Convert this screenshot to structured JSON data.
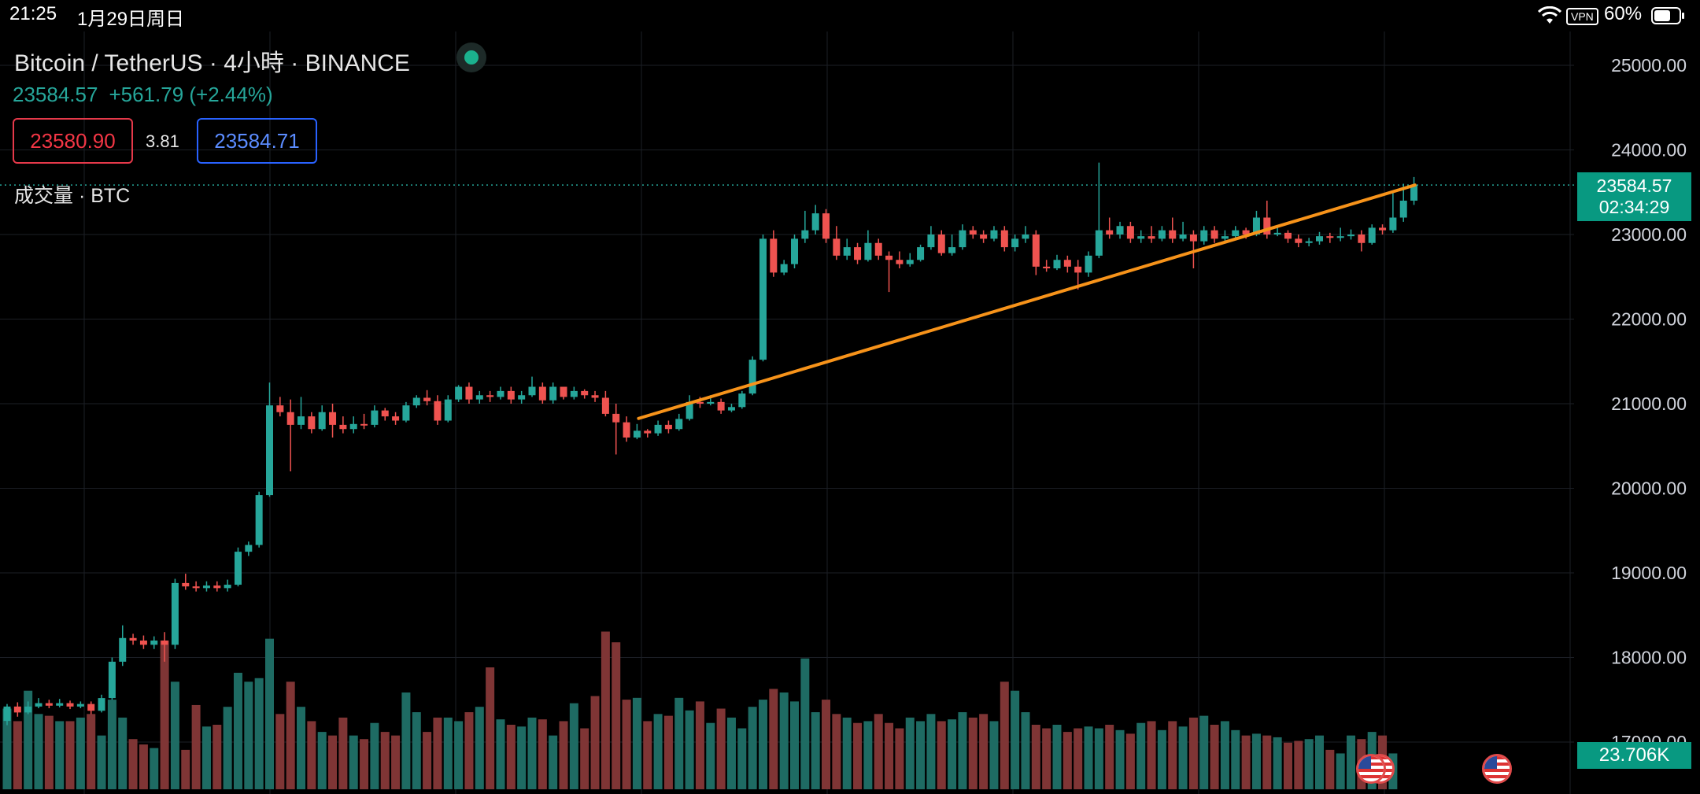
{
  "status_bar": {
    "time": "21:25",
    "date": "1月29日周日",
    "vpn": "VPN",
    "battery": "60%",
    "icons": [
      "wifi-icon",
      "vpn-icon",
      "battery-icon"
    ]
  },
  "header": {
    "symbol": "Bitcoin / TetherUS · 4小時 · BINANCE",
    "last_price": "23584.57",
    "change": "+561.79 (+2.44%)",
    "bid": "23580.90",
    "spread": "3.81",
    "ask": "23584.71",
    "volume_label": "成交量 · BTC"
  },
  "colors": {
    "up": "#26a69a",
    "down": "#ef5350",
    "trendline": "#f7931a",
    "background": "#000000",
    "tag": "#089981"
  },
  "events": [
    "us-flag-icon",
    "us-flag-icon",
    "us-flag-icon"
  ],
  "chart_data": {
    "type": "candlestick",
    "price_axis": {
      "ticks": [
        17000,
        18000,
        19000,
        20000,
        21000,
        22000,
        23000,
        24000,
        25000
      ],
      "tick_labels": [
        "17000.00",
        "18000.00",
        "19000.00",
        "20000.00",
        "21000.00",
        "22000.00",
        "23000.00",
        "24000.00",
        "25000.00"
      ],
      "range": [
        16500,
        25200
      ]
    },
    "last_price_tag": {
      "price": "23584.57",
      "countdown": "02:34:29",
      "value": 23584.57
    },
    "volume_tag": "23.706K",
    "trendline": {
      "from_index": 60,
      "from_price": 20900,
      "to_index": 132,
      "to_price": 23584.57
    },
    "grid": true,
    "candles": [
      [
        17250,
        17420,
        17200,
        17450
      ],
      [
        17420,
        17350,
        17300,
        17470
      ],
      [
        17350,
        17420,
        17330,
        17480
      ],
      [
        17420,
        17460,
        17400,
        17520
      ],
      [
        17460,
        17430,
        17400,
        17500
      ],
      [
        17430,
        17460,
        17410,
        17510
      ],
      [
        17460,
        17420,
        17390,
        17490
      ],
      [
        17420,
        17450,
        17400,
        17480
      ],
      [
        17450,
        17370,
        17330,
        17480
      ],
      [
        17370,
        17520,
        17350,
        17560
      ],
      [
        17520,
        17950,
        17500,
        18000
      ],
      [
        17950,
        18230,
        17900,
        18380
      ],
      [
        18230,
        18200,
        18150,
        18280
      ],
      [
        18200,
        18150,
        18100,
        18260
      ],
      [
        18150,
        18200,
        18100,
        18250
      ],
      [
        18200,
        18150,
        17950,
        18300
      ],
      [
        18150,
        18880,
        18100,
        18930
      ],
      [
        18880,
        18840,
        18800,
        18990
      ],
      [
        18840,
        18820,
        18780,
        18900
      ],
      [
        18820,
        18850,
        18780,
        18900
      ],
      [
        18850,
        18820,
        18780,
        18900
      ],
      [
        18820,
        18860,
        18780,
        18920
      ],
      [
        18860,
        19250,
        18840,
        19300
      ],
      [
        19250,
        19330,
        19200,
        19370
      ],
      [
        19330,
        19920,
        19300,
        19960
      ],
      [
        19920,
        20980,
        19900,
        21250
      ],
      [
        20980,
        20900,
        20850,
        21080
      ],
      [
        20900,
        20750,
        20200,
        21050
      ],
      [
        20750,
        20850,
        20700,
        21080
      ],
      [
        20850,
        20700,
        20650,
        20900
      ],
      [
        20700,
        20900,
        20680,
        20980
      ],
      [
        20900,
        20750,
        20600,
        21000
      ],
      [
        20750,
        20700,
        20650,
        20850
      ],
      [
        20700,
        20760,
        20650,
        20850
      ],
      [
        20760,
        20750,
        20700,
        20880
      ],
      [
        20750,
        20920,
        20720,
        20980
      ],
      [
        20920,
        20850,
        20800,
        20950
      ],
      [
        20850,
        20800,
        20750,
        20900
      ],
      [
        20800,
        20980,
        20780,
        21020
      ],
      [
        20980,
        21070,
        20950,
        21100
      ],
      [
        21070,
        21030,
        20980,
        21160
      ],
      [
        21030,
        20800,
        20750,
        21100
      ],
      [
        20800,
        21050,
        20780,
        21100
      ],
      [
        21050,
        21200,
        21020,
        21220
      ],
      [
        21200,
        21050,
        21000,
        21250
      ],
      [
        21050,
        21100,
        21000,
        21150
      ],
      [
        21100,
        21080,
        21020,
        21150
      ],
      [
        21080,
        21150,
        21050,
        21200
      ],
      [
        21150,
        21050,
        21000,
        21200
      ],
      [
        21050,
        21100,
        21000,
        21150
      ],
      [
        21100,
        21200,
        21080,
        21320
      ],
      [
        21200,
        21040,
        21000,
        21250
      ],
      [
        21040,
        21200,
        21000,
        21250
      ],
      [
        21200,
        21080,
        21050,
        21150
      ],
      [
        21080,
        21150,
        21050,
        21200
      ],
      [
        21150,
        21100,
        21060,
        21170
      ],
      [
        21100,
        21070,
        21020,
        21150
      ],
      [
        21070,
        20880,
        20850,
        21150
      ],
      [
        20880,
        20780,
        20400,
        21000
      ],
      [
        20780,
        20600,
        20550,
        20850
      ],
      [
        20600,
        20680,
        20580,
        20760
      ],
      [
        20680,
        20650,
        20600,
        20700
      ],
      [
        20650,
        20750,
        20620,
        20800
      ],
      [
        20750,
        20700,
        20650,
        20800
      ],
      [
        20700,
        20820,
        20680,
        20880
      ],
      [
        20820,
        21020,
        20800,
        21100
      ],
      [
        21020,
        21000,
        20950,
        21080
      ],
      [
        21000,
        21020,
        20980,
        21100
      ],
      [
        21020,
        20920,
        20880,
        21060
      ],
      [
        20920,
        20960,
        20900,
        21000
      ],
      [
        20960,
        21120,
        20940,
        21150
      ],
      [
        21120,
        21520,
        21100,
        21560
      ],
      [
        21520,
        22950,
        21500,
        23000
      ],
      [
        22950,
        22550,
        22500,
        23050
      ],
      [
        22550,
        22650,
        22520,
        22700
      ],
      [
        22650,
        22950,
        22600,
        23000
      ],
      [
        22950,
        23050,
        22900,
        23280
      ],
      [
        23050,
        23250,
        23000,
        23350
      ],
      [
        23250,
        22950,
        22900,
        23300
      ],
      [
        22950,
        22750,
        22700,
        23100
      ],
      [
        22750,
        22850,
        22700,
        22950
      ],
      [
        22850,
        22700,
        22650,
        22900
      ],
      [
        22700,
        22900,
        22680,
        23050
      ],
      [
        22900,
        22750,
        22700,
        22950
      ],
      [
        22750,
        22700,
        22320,
        22800
      ],
      [
        22700,
        22650,
        22600,
        22800
      ],
      [
        22650,
        22700,
        22620,
        22780
      ],
      [
        22700,
        22850,
        22680,
        22880
      ],
      [
        22850,
        23000,
        22820,
        23100
      ],
      [
        23000,
        22780,
        22750,
        23050
      ],
      [
        22780,
        22850,
        22750,
        23000
      ],
      [
        22850,
        23050,
        22820,
        23120
      ],
      [
        23050,
        23000,
        22950,
        23100
      ],
      [
        23000,
        22950,
        22900,
        23050
      ],
      [
        22950,
        23050,
        22920,
        23100
      ],
      [
        23050,
        22850,
        22800,
        23100
      ],
      [
        22850,
        22950,
        22800,
        23000
      ],
      [
        22950,
        23000,
        22900,
        23100
      ],
      [
        23000,
        22620,
        22520,
        23050
      ],
      [
        22620,
        22600,
        22560,
        22700
      ],
      [
        22600,
        22700,
        22580,
        22760
      ],
      [
        22700,
        22620,
        22550,
        22750
      ],
      [
        22620,
        22550,
        22350,
        22700
      ],
      [
        22550,
        22750,
        22500,
        22800
      ],
      [
        22750,
        23050,
        22720,
        23850
      ],
      [
        23050,
        23000,
        22950,
        23200
      ],
      [
        23000,
        23100,
        22950,
        23150
      ],
      [
        23100,
        22950,
        22900,
        23150
      ],
      [
        22950,
        22980,
        22900,
        23050
      ],
      [
        22980,
        22950,
        22900,
        23100
      ],
      [
        22950,
        23050,
        22920,
        23100
      ],
      [
        23050,
        22950,
        22900,
        23200
      ],
      [
        22950,
        23000,
        22920,
        23150
      ],
      [
        23000,
        22920,
        22600,
        23050
      ],
      [
        22920,
        23050,
        22880,
        23100
      ],
      [
        23050,
        22950,
        22900,
        23100
      ],
      [
        22950,
        22980,
        22900,
        23050
      ],
      [
        22980,
        23050,
        22940,
        23100
      ],
      [
        23050,
        23000,
        22950,
        23080
      ],
      [
        23000,
        23200,
        22980,
        23280
      ],
      [
        23200,
        23000,
        22950,
        23400
      ],
      [
        23000,
        23020,
        22980,
        23100
      ],
      [
        23020,
        22950,
        22900,
        23050
      ],
      [
        22950,
        22900,
        22850,
        23000
      ],
      [
        22900,
        22920,
        22860,
        22960
      ],
      [
        22920,
        22980,
        22880,
        23030
      ],
      [
        22980,
        22960,
        22900,
        23020
      ],
      [
        22960,
        22980,
        22920,
        23080
      ],
      [
        22980,
        23000,
        22940,
        23060
      ],
      [
        23000,
        22900,
        22800,
        23050
      ],
      [
        22900,
        23080,
        22880,
        23120
      ],
      [
        23080,
        23050,
        23000,
        23120
      ],
      [
        23050,
        23200,
        23020,
        23500
      ],
      [
        23200,
        23400,
        23150,
        23600
      ],
      [
        23400,
        23584.57,
        23350,
        23680
      ]
    ],
    "volumes": [
      0.45,
      0.38,
      0.55,
      0.42,
      0.41,
      0.38,
      0.38,
      0.4,
      0.42,
      0.3,
      0.5,
      0.4,
      0.28,
      0.25,
      0.23,
      0.83,
      0.6,
      0.22,
      0.47,
      0.35,
      0.36,
      0.46,
      0.65,
      0.6,
      0.62,
      0.84,
      0.42,
      0.6,
      0.46,
      0.38,
      0.32,
      0.3,
      0.4,
      0.3,
      0.28,
      0.37,
      0.32,
      0.3,
      0.54,
      0.43,
      0.32,
      0.4,
      0.4,
      0.38,
      0.43,
      0.46,
      0.68,
      0.39,
      0.36,
      0.35,
      0.4,
      0.39,
      0.3,
      0.38,
      0.48,
      0.34,
      0.52,
      0.88,
      0.82,
      0.5,
      0.51,
      0.38,
      0.42,
      0.41,
      0.51,
      0.44,
      0.49,
      0.37,
      0.45,
      0.4,
      0.34,
      0.46,
      0.5,
      0.56,
      0.54,
      0.49,
      0.73,
      0.43,
      0.5,
      0.42,
      0.4,
      0.37,
      0.38,
      0.42,
      0.37,
      0.34,
      0.4,
      0.38,
      0.42,
      0.38,
      0.39,
      0.43,
      0.4,
      0.42,
      0.38,
      0.6,
      0.55,
      0.43,
      0.36,
      0.34,
      0.36,
      0.32,
      0.34,
      0.35,
      0.34,
      0.36,
      0.33,
      0.31,
      0.37,
      0.38,
      0.33,
      0.38,
      0.35,
      0.4,
      0.41,
      0.36,
      0.38,
      0.33,
      0.3,
      0.31,
      0.3,
      0.29,
      0.26,
      0.27,
      0.28,
      0.3,
      0.22,
      0.2,
      0.3,
      0.28,
      0.32,
      0.3,
      0.2
    ]
  }
}
